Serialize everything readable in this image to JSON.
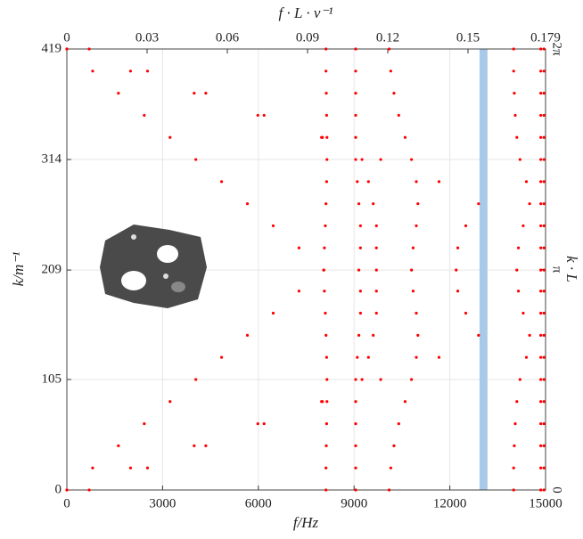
{
  "chart_data": {
    "type": "scatter",
    "xlabel": "f/Hz",
    "ylabel": "k/m⁻¹",
    "x2label": "f · L · v⁻¹",
    "y2label": "k · L",
    "xlim": [
      0,
      15000
    ],
    "xticks": [
      0,
      3000,
      6000,
      9000,
      12000,
      15000
    ],
    "ylim": [
      0,
      419
    ],
    "yticks": [
      0,
      105,
      209,
      314,
      419
    ],
    "x2lim": [
      0,
      0.179
    ],
    "x2ticks": [
      0,
      0.03,
      0.06,
      0.09,
      0.12,
      0.15,
      0.179
    ],
    "y2lim": [
      0,
      6.28318
    ],
    "y2ticks": [
      0,
      {
        "value": 3.14159,
        "label": "π"
      },
      {
        "value": 6.28318,
        "label": "2π"
      }
    ],
    "grid": true,
    "highlight_band": [
      12930,
      13180
    ],
    "highlight_color": "#a9c9e9",
    "series": [
      {
        "color": "#ff0000",
        "x": [
          0,
          808,
          1616,
          2425,
          3233,
          4041,
          4849,
          5657,
          6466,
          7274,
          8050,
          7274,
          6466,
          5657,
          4849,
          4041,
          3233,
          2425,
          1616,
          808,
          0
        ],
        "values": [
          0,
          21,
          42,
          63,
          84,
          105,
          126,
          147,
          168,
          189,
          209,
          230,
          251,
          272,
          293,
          314,
          335,
          356,
          377,
          398,
          419
        ]
      },
      {
        "color": "#ff0000",
        "x": [
          700,
          2527,
          4354,
          6181,
          8008,
          9835,
          11662,
          12900,
          12500,
          12250,
          12200,
          12250,
          12500,
          12900,
          11662,
          9835,
          8008,
          6181,
          4354,
          2527,
          700
        ],
        "values": [
          0,
          21,
          42,
          63,
          84,
          105,
          126,
          147,
          168,
          189,
          209,
          230,
          251,
          272,
          293,
          314,
          335,
          356,
          377,
          398,
          419
        ]
      },
      {
        "color": "#ff0000",
        "x": [
          8120,
          8120,
          8130,
          8140,
          8150,
          8150,
          8140,
          8120,
          8100,
          8070,
          8050,
          8070,
          8100,
          8120,
          8140,
          8150,
          8150,
          8140,
          8130,
          8120,
          8120
        ],
        "values": [
          0,
          21,
          42,
          63,
          84,
          105,
          126,
          147,
          168,
          189,
          209,
          230,
          251,
          272,
          293,
          314,
          335,
          356,
          377,
          398,
          419
        ]
      },
      {
        "color": "#ff0000",
        "x": [
          9050,
          9050,
          9050,
          9050,
          9050,
          9050,
          9100,
          9150,
          9200,
          9200,
          9150,
          9200,
          9200,
          9150,
          9100,
          9050,
          9050,
          9050,
          9050,
          9050,
          9050
        ],
        "values": [
          0,
          21,
          42,
          63,
          84,
          105,
          126,
          147,
          168,
          189,
          209,
          230,
          251,
          272,
          293,
          314,
          335,
          356,
          377,
          398,
          419
        ]
      },
      {
        "color": "#ff0000",
        "x": [
          0,
          1995,
          3990,
          5985,
          7980,
          9250,
          9450,
          9600,
          9700,
          9700,
          9700,
          9700,
          9700,
          9600,
          9450,
          9250,
          7980,
          5985,
          3990,
          1995,
          0
        ],
        "values": [
          0,
          21,
          42,
          63,
          84,
          105,
          126,
          147,
          168,
          189,
          209,
          230,
          251,
          272,
          293,
          314,
          335,
          356,
          377,
          398,
          419
        ]
      },
      {
        "color": "#ff0000",
        "x": [
          10100,
          10150,
          10250,
          10400,
          10600,
          10800,
          10950,
          11000,
          10950,
          10850,
          10800,
          10850,
          10950,
          11000,
          10950,
          10800,
          10600,
          10400,
          10250,
          10150,
          10100
        ],
        "values": [
          0,
          21,
          42,
          63,
          84,
          105,
          126,
          147,
          168,
          189,
          209,
          230,
          251,
          272,
          293,
          314,
          335,
          356,
          377,
          398,
          419
        ]
      },
      {
        "color": "#ff0000",
        "x": [
          14000,
          14000,
          14020,
          14050,
          14100,
          14200,
          14400,
          14500,
          14300,
          14150,
          14100,
          14150,
          14300,
          14500,
          14400,
          14200,
          14100,
          14050,
          14020,
          14000,
          14000
        ],
        "values": [
          0,
          21,
          42,
          63,
          84,
          105,
          126,
          147,
          168,
          189,
          209,
          230,
          251,
          272,
          293,
          314,
          335,
          356,
          377,
          398,
          419
        ]
      },
      {
        "color": "#ff0000",
        "x": [
          14850,
          14850,
          14850,
          14850,
          14850,
          14850,
          14850,
          14850,
          14850,
          14850,
          14850,
          14850,
          14850,
          14850,
          14850,
          14850,
          14850,
          14850,
          14850,
          14850,
          14850
        ],
        "values": [
          0,
          21,
          42,
          63,
          84,
          105,
          126,
          147,
          168,
          189,
          209,
          230,
          251,
          272,
          293,
          314,
          335,
          356,
          377,
          398,
          419
        ]
      },
      {
        "color": "#ff0000",
        "x": [
          14950,
          14950,
          14950,
          14950,
          14950,
          14950,
          14950,
          14950,
          14950,
          14950,
          14950,
          14950,
          14950,
          14950,
          14950,
          14950,
          14950,
          14950,
          14950,
          14950,
          14950
        ],
        "values": [
          0,
          21,
          42,
          63,
          84,
          105,
          126,
          147,
          168,
          189,
          209,
          230,
          251,
          272,
          293,
          314,
          335,
          356,
          377,
          398,
          419
        ]
      }
    ]
  }
}
